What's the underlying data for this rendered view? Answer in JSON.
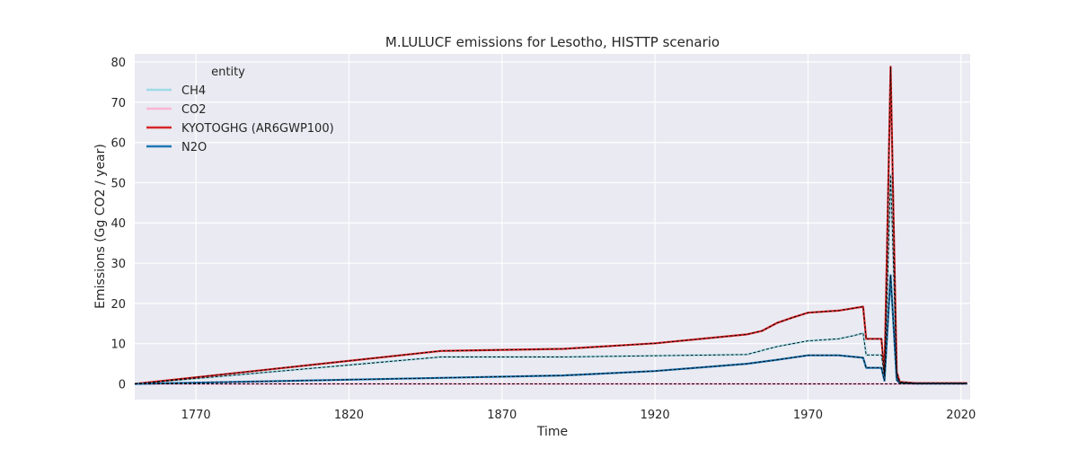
{
  "chart_data": {
    "type": "line",
    "title": "M.LULUCF emissions for Lesotho, HISTTP scenario",
    "xlabel": "Time",
    "ylabel": "Emissions (Gg CO2 / year)",
    "xlim": [
      1750,
      2023
    ],
    "ylim": [
      -3.9,
      82
    ],
    "x_ticks": [
      1770,
      1820,
      1870,
      1920,
      1970,
      2020
    ],
    "y_ticks": [
      0,
      10,
      20,
      30,
      40,
      50,
      60,
      70,
      80
    ],
    "grid": true,
    "legend": {
      "title": "entity",
      "placement": "top-left"
    },
    "series": [
      {
        "name": "CH4",
        "color": "#9edae5",
        "points": [
          [
            1750,
            0
          ],
          [
            1850,
            6.7
          ],
          [
            1890,
            6.7
          ],
          [
            1950,
            7.3
          ],
          [
            1960,
            9.3
          ],
          [
            1970,
            10.7
          ],
          [
            1980,
            11.2
          ],
          [
            1985,
            12.0
          ],
          [
            1988,
            12.6
          ],
          [
            1989,
            7.2
          ],
          [
            1994,
            7.2
          ],
          [
            1995,
            2.0
          ],
          [
            1996,
            25.0
          ],
          [
            1997,
            52.0
          ],
          [
            1998,
            28.0
          ],
          [
            1999,
            2.0
          ],
          [
            2000,
            0.3
          ],
          [
            2005,
            0.1
          ],
          [
            2022,
            0.1
          ]
        ]
      },
      {
        "name": "CO2",
        "color": "#f7b6d2",
        "points": [
          [
            1750,
            0
          ],
          [
            2022,
            0
          ]
        ]
      },
      {
        "name": "KYOTOGHG (AR6GWP100)",
        "color": "#d62728",
        "points": [
          [
            1750,
            0
          ],
          [
            1850,
            8.2
          ],
          [
            1890,
            8.7
          ],
          [
            1920,
            10.1
          ],
          [
            1950,
            12.3
          ],
          [
            1955,
            13.2
          ],
          [
            1960,
            15.2
          ],
          [
            1965,
            16.5
          ],
          [
            1970,
            17.7
          ],
          [
            1980,
            18.2
          ],
          [
            1988,
            19.2
          ],
          [
            1989,
            11.2
          ],
          [
            1994,
            11.2
          ],
          [
            1995,
            2.5
          ],
          [
            1996,
            40.0
          ],
          [
            1997,
            78.8
          ],
          [
            1998,
            40.0
          ],
          [
            1999,
            3.0
          ],
          [
            2000,
            0.5
          ],
          [
            2005,
            0.2
          ],
          [
            2022,
            0.2
          ]
        ]
      },
      {
        "name": "N2O",
        "color": "#1f77b4",
        "points": [
          [
            1750,
            0
          ],
          [
            1850,
            1.5
          ],
          [
            1890,
            2.1
          ],
          [
            1920,
            3.2
          ],
          [
            1950,
            5.0
          ],
          [
            1960,
            6.0
          ],
          [
            1970,
            7.1
          ],
          [
            1980,
            7.1
          ],
          [
            1988,
            6.5
          ],
          [
            1989,
            4.0
          ],
          [
            1994,
            4.0
          ],
          [
            1995,
            0.8
          ],
          [
            1996,
            14.0
          ],
          [
            1997,
            27.0
          ],
          [
            1998,
            14.0
          ],
          [
            1999,
            1.0
          ],
          [
            2000,
            0.2
          ],
          [
            2005,
            0.1
          ],
          [
            2022,
            0.1
          ]
        ]
      }
    ]
  }
}
